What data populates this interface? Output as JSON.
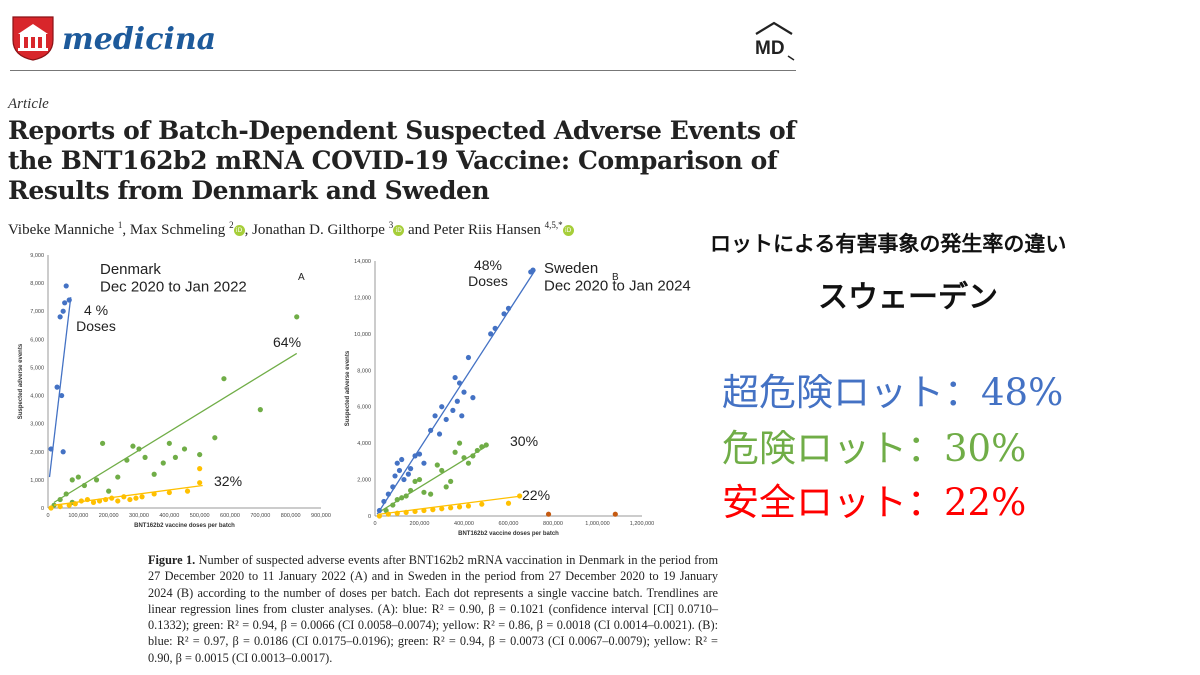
{
  "header": {
    "journal": "medicina",
    "publisher_logo": "MD"
  },
  "article": {
    "type": "Article",
    "title": "Reports of Batch-Dependent Suspected Adverse Events of the BNT162b2 mRNA COVID-19 Vaccine: Comparison of Results from Denmark and Sweden",
    "authors": [
      {
        "name": "Vibeke Manniche",
        "aff": "1",
        "orcid": false
      },
      {
        "name": "Max Schmeling",
        "aff": "2",
        "orcid": true
      },
      {
        "name": "Jonathan D. Gilthorpe",
        "aff": "3",
        "orcid": true
      },
      {
        "name": "Peter Riis Hansen",
        "aff": "4,5,*",
        "orcid": true
      }
    ],
    "author_separator": ", ",
    "author_conjunction": " and "
  },
  "figure": {
    "caption_label": "Figure 1.",
    "caption_text": " Number of suspected adverse events after BNT162b2 mRNA vaccination in Denmark in the period from 27 December 2020 to 11 January 2022 (A) and in Sweden in the period from 27 December 2020 to 19 January 2024 (B) according to the number of doses per batch. Each dot represents a single vaccine batch. Trendlines are linear regression lines from cluster analyses. (A): blue: R² = 0.90, β = 0.1021 (confidence interval [CI] 0.0710–0.1332); green: R² = 0.94, β = 0.0066 (CI 0.0058–0.0074); yellow: R² = 0.86, β = 0.0018 (CI 0.0014–0.0021). (B): blue: R² = 0.97, β = 0.0186 (CI 0.0175–0.0196); green: R² = 0.94, β = 0.0073 (CI 0.0067–0.0079); yellow: R² = 0.90, β = 0.0015 (CI 0.0013–0.0017)."
  },
  "overlay": {
    "title": "ロットによる有害事象の発生率の違い",
    "country": "スウェーデン",
    "stats": [
      {
        "label": "超危険ロット：48%",
        "color": "#4472c4"
      },
      {
        "label": "危険ロット：30%",
        "color": "#70ad47"
      },
      {
        "label": "安全ロット：22%",
        "color": "#ff0000"
      }
    ]
  },
  "chart_data": [
    {
      "type": "scatter",
      "panel": "A",
      "annotation": "Denmark\nDec 2020 to Jan 2022",
      "xlabel": "BNT162b2 vaccine doses per batch",
      "ylabel": "Suspected adverse events",
      "xlim": [
        0,
        900000
      ],
      "ylim": [
        0,
        9000
      ],
      "xticks": [
        0,
        100000,
        200000,
        300000,
        400000,
        500000,
        600000,
        700000,
        800000,
        900000
      ],
      "yticks": [
        0,
        1000,
        2000,
        3000,
        4000,
        5000,
        6000,
        7000,
        8000,
        9000
      ],
      "xtick_labels": [
        "0",
        "100,000",
        "200,000",
        "300,000",
        "400,000",
        "500,000",
        "600,000",
        "700,000",
        "800,000",
        "900,000"
      ],
      "ytick_labels": [
        "0",
        "1,000",
        "2,000",
        "3,000",
        "4,000",
        "5,000",
        "6,000",
        "7,000",
        "8,000",
        "9,000"
      ],
      "series": [
        {
          "color": "#4472c4",
          "label": "4 %\nDoses",
          "points": [
            [
              10000,
              2100
            ],
            [
              30000,
              4300
            ],
            [
              40000,
              6800
            ],
            [
              45000,
              4000
            ],
            [
              50000,
              7000
            ],
            [
              55000,
              7300
            ],
            [
              60000,
              7900
            ],
            [
              70000,
              7400
            ],
            [
              50000,
              2000
            ]
          ],
          "trend": [
            [
              5000,
              1100
            ],
            [
              75000,
              7500
            ]
          ]
        },
        {
          "color": "#70ad47",
          "label": "64%",
          "points": [
            [
              20000,
              100
            ],
            [
              40000,
              300
            ],
            [
              60000,
              500
            ],
            [
              80000,
              1000
            ],
            [
              100000,
              1100
            ],
            [
              120000,
              800
            ],
            [
              160000,
              1000
            ],
            [
              180000,
              2300
            ],
            [
              200000,
              600
            ],
            [
              230000,
              1100
            ],
            [
              260000,
              1700
            ],
            [
              280000,
              2200
            ],
            [
              300000,
              2100
            ],
            [
              320000,
              1800
            ],
            [
              350000,
              1200
            ],
            [
              380000,
              1600
            ],
            [
              400000,
              2300
            ],
            [
              420000,
              1800
            ],
            [
              450000,
              2100
            ],
            [
              500000,
              1900
            ],
            [
              550000,
              2500
            ],
            [
              580000,
              4600
            ],
            [
              700000,
              3500
            ],
            [
              820000,
              6800
            ],
            [
              80000,
              200
            ]
          ],
          "trend": [
            [
              20000,
              200
            ],
            [
              820000,
              5500
            ]
          ]
        },
        {
          "color": "#ffc000",
          "label": "32%",
          "points": [
            [
              10000,
              0
            ],
            [
              40000,
              50
            ],
            [
              70000,
              100
            ],
            [
              90000,
              150
            ],
            [
              110000,
              250
            ],
            [
              130000,
              300
            ],
            [
              150000,
              200
            ],
            [
              170000,
              250
            ],
            [
              190000,
              300
            ],
            [
              210000,
              350
            ],
            [
              230000,
              250
            ],
            [
              250000,
              400
            ],
            [
              270000,
              300
            ],
            [
              290000,
              350
            ],
            [
              310000,
              400
            ],
            [
              350000,
              500
            ],
            [
              400000,
              550
            ],
            [
              460000,
              600
            ],
            [
              500000,
              1400
            ],
            [
              500000,
              900
            ]
          ],
          "trend": [
            [
              20000,
              100
            ],
            [
              510000,
              800
            ]
          ]
        }
      ]
    },
    {
      "type": "scatter",
      "panel": "B",
      "annotation": "Sweden\nDec 2020 to Jan 2024",
      "xlabel": "BNT162b2 vaccine doses per batch",
      "ylabel": "Suspected adverse events",
      "xlim": [
        0,
        1200000
      ],
      "ylim": [
        0,
        14000
      ],
      "xticks": [
        0,
        200000,
        400000,
        600000,
        800000,
        1000000,
        1200000
      ],
      "yticks": [
        0,
        2000,
        4000,
        6000,
        8000,
        10000,
        12000,
        14000
      ],
      "xtick_labels": [
        "0",
        "200,000",
        "400,000",
        "600,000",
        "800,000",
        "1,000,000",
        "1,200,000"
      ],
      "ytick_labels": [
        "0",
        "2,000",
        "4,000",
        "6,000",
        "8,000",
        "10,000",
        "12,000",
        "14,000"
      ],
      "series": [
        {
          "color": "#4472c4",
          "label": "48%\nDoses",
          "points": [
            [
              20000,
              300
            ],
            [
              40000,
              800
            ],
            [
              60000,
              1200
            ],
            [
              80000,
              1600
            ],
            [
              90000,
              2200
            ],
            [
              100000,
              2900
            ],
            [
              110000,
              2500
            ],
            [
              120000,
              3100
            ],
            [
              130000,
              2000
            ],
            [
              150000,
              2300
            ],
            [
              160000,
              2600
            ],
            [
              180000,
              3300
            ],
            [
              200000,
              3400
            ],
            [
              220000,
              2900
            ],
            [
              250000,
              4700
            ],
            [
              270000,
              5500
            ],
            [
              290000,
              4500
            ],
            [
              300000,
              6000
            ],
            [
              320000,
              5300
            ],
            [
              350000,
              5800
            ],
            [
              360000,
              7600
            ],
            [
              370000,
              6300
            ],
            [
              380000,
              7300
            ],
            [
              390000,
              5500
            ],
            [
              400000,
              6800
            ],
            [
              420000,
              8700
            ],
            [
              440000,
              6500
            ],
            [
              520000,
              10000
            ],
            [
              540000,
              10300
            ],
            [
              580000,
              11100
            ],
            [
              600000,
              11400
            ],
            [
              700000,
              13400
            ],
            [
              710000,
              13500
            ]
          ],
          "trend": [
            [
              10000,
              100
            ],
            [
              720000,
              13500
            ]
          ]
        },
        {
          "color": "#70ad47",
          "label": "30%",
          "points": [
            [
              50000,
              300
            ],
            [
              80000,
              600
            ],
            [
              100000,
              900
            ],
            [
              120000,
              1000
            ],
            [
              140000,
              1100
            ],
            [
              160000,
              1400
            ],
            [
              180000,
              1900
            ],
            [
              200000,
              2000
            ],
            [
              220000,
              1300
            ],
            [
              250000,
              1200
            ],
            [
              280000,
              2800
            ],
            [
              300000,
              2500
            ],
            [
              320000,
              1600
            ],
            [
              340000,
              1900
            ],
            [
              360000,
              3500
            ],
            [
              380000,
              4000
            ],
            [
              400000,
              3200
            ],
            [
              420000,
              2900
            ],
            [
              440000,
              3300
            ],
            [
              460000,
              3600
            ],
            [
              480000,
              3800
            ],
            [
              500000,
              3900
            ]
          ],
          "trend": [
            [
              30000,
              300
            ],
            [
              510000,
              3900
            ]
          ]
        },
        {
          "color": "#ffc000",
          "label": "22%",
          "points": [
            [
              20000,
              0
            ],
            [
              60000,
              100
            ],
            [
              100000,
              150
            ],
            [
              140000,
              200
            ],
            [
              180000,
              250
            ],
            [
              220000,
              300
            ],
            [
              260000,
              350
            ],
            [
              300000,
              400
            ],
            [
              340000,
              450
            ],
            [
              380000,
              500
            ],
            [
              420000,
              550
            ],
            [
              480000,
              650
            ],
            [
              600000,
              700
            ],
            [
              650000,
              1100
            ]
          ],
          "trend": [
            [
              20000,
              100
            ],
            [
              660000,
              1100
            ]
          ]
        },
        {
          "color": "#c55a11",
          "label": "",
          "points": [
            [
              780000,
              100
            ],
            [
              1080000,
              100
            ]
          ],
          "trend": []
        }
      ]
    }
  ]
}
